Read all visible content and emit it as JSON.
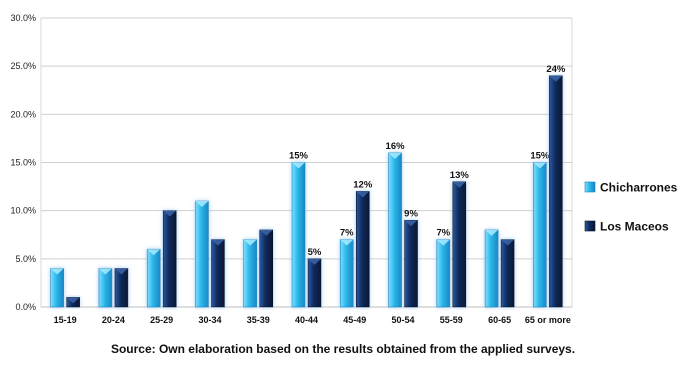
{
  "chart_data": {
    "type": "bar",
    "categories": [
      "15-19",
      "20-24",
      "25-29",
      "30-34",
      "35-39",
      "40-44",
      "45-49",
      "50-54",
      "55-59",
      "60-65",
      "65 or more"
    ],
    "series": [
      {
        "name": "Chicharrones",
        "values": [
          4,
          4,
          6,
          11,
          7,
          15,
          7,
          16,
          7,
          8,
          15
        ],
        "color": "#29b6e8",
        "data_labels": [
          "",
          "",
          "",
          "",
          "",
          "15%",
          "7%",
          "16%",
          "7%",
          "",
          "15%"
        ]
      },
      {
        "name": "Los Maceos",
        "values": [
          1,
          4,
          10,
          7,
          8,
          5,
          12,
          9,
          13,
          7,
          24
        ],
        "color": "#0d2a5c",
        "data_labels": [
          "",
          "",
          "",
          "",
          "",
          "5%",
          "12%",
          "9%",
          "13%",
          "",
          "24%"
        ]
      }
    ],
    "yticks": [
      "0.0%",
      "5.0%",
      "10.0%",
      "15.0%",
      "20.0%",
      "25.0%",
      "30.0%"
    ],
    "ylim": [
      0,
      30
    ],
    "ytick_step": 5,
    "grid": true,
    "legend_position": "right",
    "title": "",
    "xlabel": "",
    "ylabel": ""
  },
  "caption": "Source: Own elaboration based on the results obtained from the applied surveys."
}
